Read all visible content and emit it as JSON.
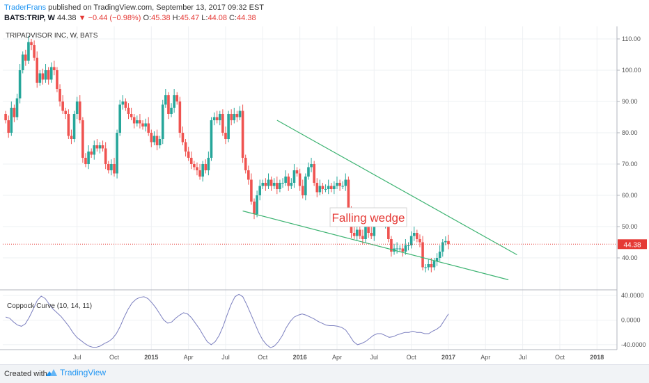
{
  "header": {
    "author": "TraderFrans",
    "published_text": "published on TradingView.com, September 13, 2017 09:32 EST",
    "symbol": "BATS:TRIP, W",
    "last": "44.38",
    "change": "−0.44 (−0.98%)",
    "open_label": "O:",
    "open": "45.38",
    "high_label": "H:",
    "high": "45.47",
    "low_label": "L:",
    "low": "44.08",
    "close_label": "C:",
    "close": "44.38"
  },
  "footer": {
    "created_with": "Created with",
    "brand": "TradingView"
  },
  "colors": {
    "up": "#26a69a",
    "down": "#ef5350",
    "wedge": "#3cb371",
    "coppock": "#7b7fbf",
    "last_line": "#e53935"
  },
  "chart_data": [
    {
      "type": "candlestick",
      "title": "TRIPADVISOR INC, W, BATS",
      "ylim": [
        30,
        114
      ],
      "y_ticks": [
        "40.00",
        "50.00",
        "60.00",
        "70.00",
        "80.00",
        "90.00",
        "100.00",
        "110.00"
      ],
      "x_ticks": [
        "Jul",
        "Oct",
        "2015",
        "Apr",
        "Jul",
        "Oct",
        "2016",
        "Apr",
        "Jul",
        "Oct",
        "2017",
        "Apr",
        "Jul",
        "Oct",
        "2018"
      ],
      "x_tick_weeks": [
        26,
        39,
        52,
        65,
        78,
        91,
        104,
        117,
        130,
        143,
        156,
        169,
        182,
        195,
        208
      ],
      "last_price": 44.38,
      "last_price_label": "44.38",
      "annotation": "Falling wedge",
      "wedge_lines": [
        {
          "name": "upper",
          "from": [
            96,
            84
          ],
          "to": [
            180,
            41
          ]
        },
        {
          "name": "lower",
          "from": [
            84,
            55
          ],
          "to": [
            177,
            33
          ]
        }
      ],
      "closes": [
        84,
        80,
        88,
        85,
        91,
        100,
        105,
        103,
        109,
        108,
        104,
        96,
        99,
        97,
        100,
        97,
        101,
        100,
        94,
        90,
        87,
        86,
        79,
        78,
        86,
        90,
        84,
        72,
        70,
        74,
        73,
        76,
        75,
        76,
        75,
        70,
        68,
        70,
        67,
        80,
        89,
        90,
        88,
        86,
        85,
        83,
        84,
        83,
        82,
        83,
        80,
        77,
        79,
        76,
        78,
        89,
        92,
        86,
        88,
        92,
        90,
        80,
        77,
        74,
        72,
        70,
        69,
        68,
        66,
        70,
        68,
        72,
        84,
        85,
        84,
        86,
        80,
        78,
        86,
        84,
        86,
        85,
        87,
        72,
        68,
        65,
        58,
        54,
        60,
        63,
        64,
        63,
        65,
        63,
        64,
        62,
        64,
        64,
        66,
        63,
        64,
        68,
        67,
        63,
        60,
        66,
        69,
        70,
        64,
        61,
        63,
        62,
        62,
        63,
        62,
        63,
        64,
        63,
        63,
        65,
        55,
        48,
        47,
        49,
        47,
        46,
        50,
        48,
        47,
        52,
        52,
        52,
        51,
        51,
        46,
        42,
        43,
        43,
        43,
        42,
        44,
        44,
        47,
        48,
        46,
        45,
        37,
        37,
        38,
        37,
        39,
        40,
        42,
        45,
        45.38,
        44.38
      ]
    },
    {
      "type": "line",
      "title": "Coppock Curve (10, 14, 11)",
      "ylim": [
        -48,
        48
      ],
      "y_ticks": [
        "40.0000",
        "0.0000",
        "-40.0000"
      ],
      "values": [
        5,
        3,
        -3,
        -8,
        -10,
        -6,
        5,
        18,
        32,
        39,
        35,
        26,
        18,
        12,
        6,
        -2,
        -10,
        -20,
        -28,
        -33,
        -38,
        -42,
        -44,
        -44,
        -42,
        -38,
        -35,
        -30,
        -22,
        -10,
        5,
        18,
        28,
        34,
        37,
        38,
        35,
        28,
        20,
        10,
        0,
        -5,
        -3,
        3,
        8,
        12,
        10,
        4,
        -5,
        -14,
        -25,
        -35,
        -40,
        -35,
        -25,
        -10,
        8,
        25,
        38,
        42,
        38,
        25,
        10,
        -5,
        -20,
        -32,
        -40,
        -45,
        -42,
        -35,
        -25,
        -12,
        -2,
        5,
        8,
        10,
        8,
        5,
        2,
        -2,
        -5,
        -8,
        -9,
        -9,
        -10,
        -12,
        -16,
        -25,
        -35,
        -40,
        -38,
        -35,
        -30,
        -25,
        -22,
        -22,
        -25,
        -28,
        -27,
        -24,
        -22,
        -20,
        -20,
        -18,
        -20,
        -20,
        -22,
        -22,
        -18,
        -15,
        -10,
        0,
        10
      ]
    }
  ]
}
